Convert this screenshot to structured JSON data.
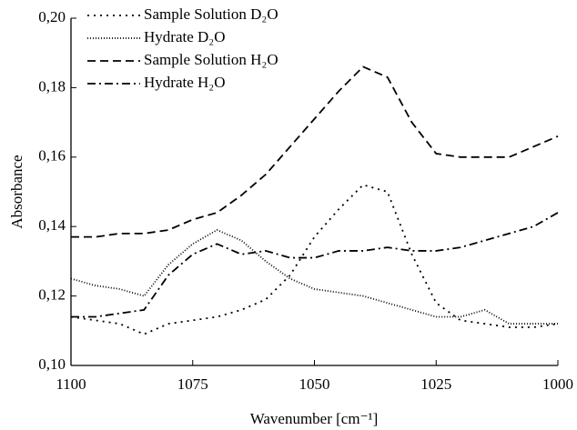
{
  "chart_data": {
    "type": "line",
    "x_label": "Wavenumber [cm⁻¹]",
    "y_label": "Absorbance",
    "x": [
      1100,
      1095,
      1090,
      1085,
      1080,
      1075,
      1070,
      1065,
      1060,
      1055,
      1050,
      1045,
      1040,
      1035,
      1030,
      1025,
      1020,
      1015,
      1010,
      1005,
      1000
    ],
    "series": [
      {
        "name": "Sample Solution D₂O",
        "color": "#000000",
        "dash": "2 5",
        "values": [
          0.114,
          0.113,
          0.112,
          0.109,
          0.112,
          0.113,
          0.114,
          0.116,
          0.119,
          0.126,
          0.137,
          0.145,
          0.152,
          0.15,
          0.132,
          0.118,
          0.113,
          0.112,
          0.111,
          0.111,
          0.112
        ]
      },
      {
        "name": "Hydrate D₂O",
        "color": "#000000",
        "dash": "1 2",
        "values": [
          0.125,
          0.123,
          0.122,
          0.12,
          0.129,
          0.135,
          0.139,
          0.136,
          0.13,
          0.125,
          0.122,
          0.121,
          0.12,
          0.118,
          0.116,
          0.114,
          0.114,
          0.116,
          0.112,
          0.112,
          0.112
        ]
      },
      {
        "name": "Sample Solution H₂O",
        "color": "#000000",
        "dash": "9 5",
        "values": [
          0.137,
          0.137,
          0.138,
          0.138,
          0.139,
          0.142,
          0.144,
          0.149,
          0.155,
          0.163,
          0.171,
          0.179,
          0.186,
          0.183,
          0.17,
          0.161,
          0.16,
          0.16,
          0.16,
          0.163,
          0.166
        ]
      },
      {
        "name": "Hydrate H₂O",
        "color": "#000000",
        "dash": "9 4 2 4",
        "values": [
          0.114,
          0.114,
          0.115,
          0.116,
          0.126,
          0.132,
          0.135,
          0.132,
          0.133,
          0.131,
          0.131,
          0.133,
          0.133,
          0.134,
          0.133,
          0.133,
          0.134,
          0.136,
          0.138,
          0.14,
          0.144
        ]
      }
    ],
    "xlim": [
      1100,
      1000
    ],
    "xticks": [
      1100,
      1075,
      1050,
      1025,
      1000
    ],
    "ylim": [
      0.1,
      0.2
    ],
    "yticks": [
      {
        "value": 0.1,
        "label": "0,10"
      },
      {
        "value": 0.12,
        "label": "0,12"
      },
      {
        "value": 0.14,
        "label": "0,14"
      },
      {
        "value": 0.16,
        "label": "0,16"
      },
      {
        "value": 0.18,
        "label": "0,18"
      },
      {
        "value": 0.2,
        "label": "0,20"
      }
    ],
    "legend": "upper-left"
  }
}
